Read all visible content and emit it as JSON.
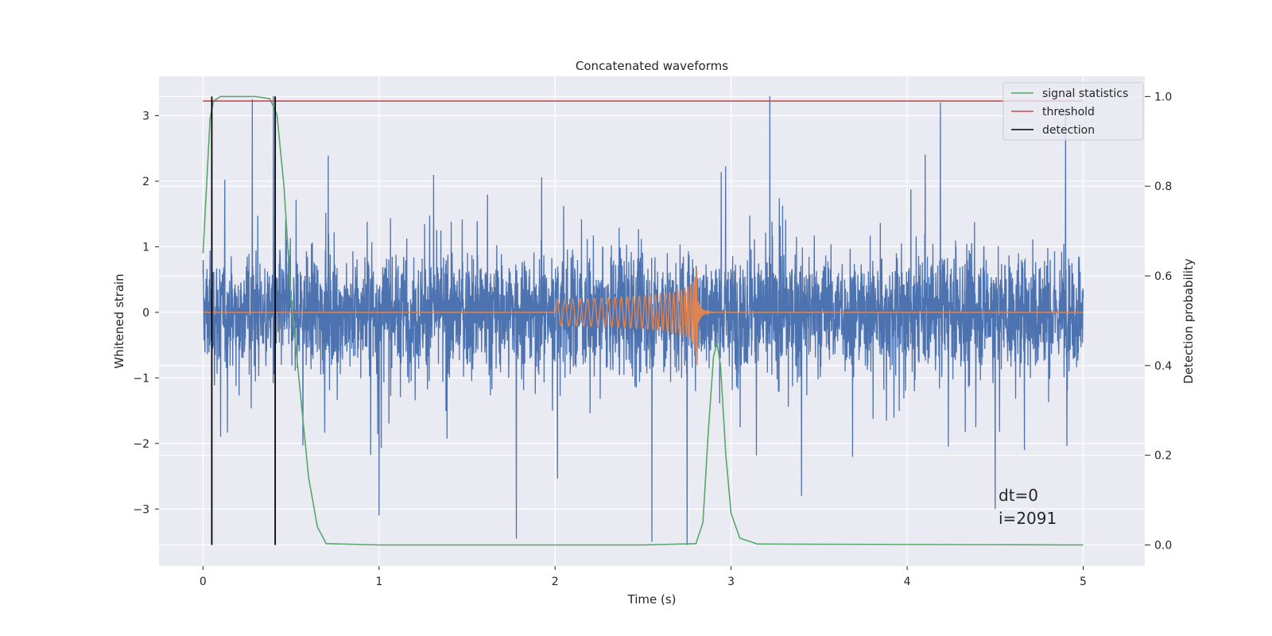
{
  "chart_data": {
    "type": "line",
    "title": "Concatenated waveforms",
    "xlabel": "Time (s)",
    "ylabel": "Whitened strain",
    "ylabel_right": "Detection probability",
    "xlim": [
      -0.25,
      5.35
    ],
    "ylim_left": [
      -3.87,
      3.6
    ],
    "ylim_right": [
      -0.047,
      1.045
    ],
    "x_ticks": [
      0,
      1,
      2,
      3,
      4,
      5
    ],
    "y_ticks_left": [
      -3,
      -2,
      -1,
      0,
      1,
      2,
      3
    ],
    "y_ticks_right": [
      0.0,
      0.2,
      0.4,
      0.6,
      0.8,
      1.0
    ],
    "x_tick_labels": [
      "0",
      "1",
      "2",
      "3",
      "4",
      "5"
    ],
    "y_tick_labels_left": [
      "−3",
      "−2",
      "−1",
      "0",
      "1",
      "2",
      "3"
    ],
    "y_tick_labels_right": [
      "0.0",
      "0.2",
      "0.4",
      "0.6",
      "0.8",
      "1.0"
    ],
    "grid": true,
    "legend_position": "top-right",
    "series": [
      {
        "name": "",
        "axis": "left",
        "color": "#4c72b0",
        "kind": "noise",
        "x_range": [
          0,
          5
        ],
        "typical_range": [
          -1.0,
          1.0
        ],
        "extrema": [
          [
            0.05,
            1.9
          ],
          [
            0.28,
            3.25
          ],
          [
            0.4,
            3.3
          ],
          [
            0.1,
            -1.9
          ],
          [
            1.0,
            -3.1
          ],
          [
            1.78,
            -3.45
          ],
          [
            2.55,
            -3.5
          ],
          [
            2.75,
            -3.55
          ],
          [
            3.22,
            3.3
          ],
          [
            3.4,
            -2.8
          ],
          [
            4.5,
            -3.0
          ],
          [
            4.9,
            3.1
          ]
        ]
      },
      {
        "name": "",
        "axis": "left",
        "color": "#dd8452",
        "kind": "chirp",
        "x_range": [
          0,
          5
        ],
        "chirp_start": 2.0,
        "chirp_end": 2.81,
        "amp_start": 0.2,
        "peak_max": 1.4,
        "peak_min": -1.0,
        "ringdown_end": 3.0
      },
      {
        "name": "signal statistics",
        "axis": "right",
        "color": "#55a868",
        "points": [
          [
            0.0,
            0.65
          ],
          [
            0.02,
            0.8
          ],
          [
            0.04,
            0.95
          ],
          [
            0.06,
            0.99
          ],
          [
            0.1,
            1.0
          ],
          [
            0.3,
            1.0
          ],
          [
            0.38,
            0.995
          ],
          [
            0.42,
            0.96
          ],
          [
            0.46,
            0.8
          ],
          [
            0.5,
            0.55
          ],
          [
            0.55,
            0.35
          ],
          [
            0.6,
            0.15
          ],
          [
            0.65,
            0.04
          ],
          [
            0.7,
            0.003
          ],
          [
            1.0,
            0.0
          ],
          [
            2.5,
            0.0
          ],
          [
            2.8,
            0.003
          ],
          [
            2.84,
            0.05
          ],
          [
            2.87,
            0.25
          ],
          [
            2.9,
            0.42
          ],
          [
            2.92,
            0.45
          ],
          [
            2.94,
            0.4
          ],
          [
            2.97,
            0.2
          ],
          [
            3.0,
            0.07
          ],
          [
            3.05,
            0.015
          ],
          [
            3.15,
            0.002
          ],
          [
            5.0,
            0.0
          ]
        ]
      },
      {
        "name": "threshold",
        "axis": "right",
        "color": "#c44e52",
        "points": [
          [
            0.0,
            0.99
          ],
          [
            5.0,
            0.99
          ]
        ]
      },
      {
        "name": "detection",
        "axis": "right",
        "color": "#000000",
        "vlines": [
          0.05,
          0.41
        ]
      }
    ],
    "annotations": [
      "dt=0",
      "i=2091"
    ]
  }
}
